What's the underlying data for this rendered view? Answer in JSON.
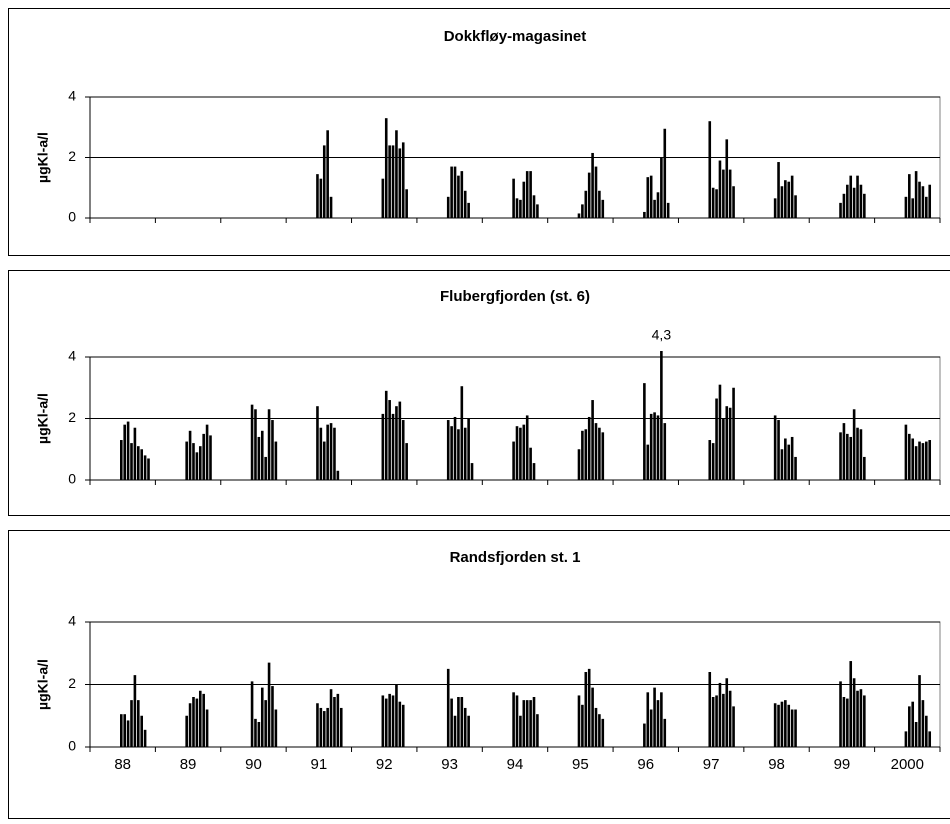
{
  "chart_data": [
    {
      "type": "bar",
      "title": "Dokkfløy-magasinet",
      "y_label": "µgKl-a/l",
      "color": "#000000",
      "grid": true,
      "ylim": [
        0,
        4
      ],
      "yticks": [
        0,
        2,
        4
      ],
      "categories": [
        null,
        null,
        null,
        null,
        null,
        null,
        null,
        null,
        null,
        null,
        null,
        null,
        null
      ],
      "values": [
        [],
        [],
        [],
        [
          1.45,
          1.3,
          2.4,
          2.9,
          0.7
        ],
        [
          1.3,
          3.3,
          2.4,
          2.4,
          2.9,
          2.3,
          2.5,
          0.95
        ],
        [
          0.7,
          1.7,
          1.7,
          1.4,
          1.55,
          0.9,
          0.5
        ],
        [
          1.3,
          0.65,
          0.6,
          1.2,
          1.55,
          1.55,
          0.75,
          0.45
        ],
        [
          0.15,
          0.45,
          0.9,
          1.5,
          2.15,
          1.7,
          0.9,
          0.6
        ],
        [
          0.2,
          1.35,
          1.4,
          0.6,
          0.85,
          2.0,
          2.95,
          0.5
        ],
        [
          3.2,
          1.0,
          0.95,
          1.9,
          1.6,
          2.6,
          1.6,
          1.05
        ],
        [
          0.65,
          1.85,
          1.05,
          1.25,
          1.2,
          1.4,
          0.75
        ],
        [
          0.5,
          0.8,
          1.1,
          1.4,
          1.0,
          1.4,
          1.1,
          0.8
        ],
        [
          0.7,
          1.45,
          0.65,
          1.55,
          1.2,
          1.05,
          0.7,
          1.1
        ]
      ]
    },
    {
      "type": "bar",
      "title": "Flubergfjorden (st. 6)",
      "y_label": "µgKl-a/l",
      "color": "#000000",
      "grid": true,
      "ylim": [
        0,
        4
      ],
      "yticks": [
        0,
        2,
        4
      ],
      "categories": [
        null,
        null,
        null,
        null,
        null,
        null,
        null,
        null,
        null,
        null,
        null,
        null,
        null
      ],
      "values": [
        [
          1.3,
          1.8,
          1.9,
          1.2,
          1.7,
          1.1,
          1.0,
          0.8,
          0.7
        ],
        [
          1.25,
          1.6,
          1.2,
          0.9,
          1.1,
          1.5,
          1.8,
          1.45
        ],
        [
          2.45,
          2.3,
          1.4,
          1.6,
          0.75,
          2.3,
          1.95,
          1.25
        ],
        [
          2.4,
          1.7,
          1.25,
          1.8,
          1.85,
          1.7,
          0.3
        ],
        [
          2.15,
          2.9,
          2.6,
          2.15,
          2.4,
          2.55,
          1.95,
          1.2
        ],
        [
          1.95,
          1.75,
          2.05,
          1.65,
          3.05,
          1.7,
          2.0,
          0.55
        ],
        [
          1.25,
          1.75,
          1.7,
          1.8,
          2.1,
          1.05,
          0.55
        ],
        [
          1.0,
          1.6,
          1.65,
          2.05,
          2.6,
          1.85,
          1.7,
          1.55
        ],
        [
          3.15,
          1.15,
          2.15,
          2.2,
          2.1,
          4.3,
          1.85
        ],
        [
          1.3,
          1.2,
          2.65,
          3.1,
          2.0,
          2.4,
          2.35,
          3.0
        ],
        [
          2.1,
          1.95,
          1.0,
          1.35,
          1.15,
          1.4,
          0.75
        ],
        [
          1.55,
          1.85,
          1.5,
          1.4,
          2.3,
          1.7,
          1.65,
          0.75
        ],
        [
          1.8,
          1.5,
          1.35,
          1.1,
          1.25,
          1.2,
          1.25,
          1.3
        ]
      ],
      "annotations": [
        {
          "text": "4,3",
          "value": 4.3
        }
      ]
    },
    {
      "type": "bar",
      "title": "Randsfjorden st. 1",
      "y_label": "µgKl-a/l",
      "color": "#000000",
      "grid": true,
      "ylim": [
        0,
        4
      ],
      "yticks": [
        0,
        2,
        4
      ],
      "categories": [
        "88",
        "89",
        "90",
        "91",
        "92",
        "93",
        "94",
        "95",
        "96",
        "97",
        "98",
        "99",
        "2000"
      ],
      "values": [
        [
          1.05,
          1.05,
          0.85,
          1.5,
          2.3,
          1.5,
          1.0,
          0.55
        ],
        [
          1.0,
          1.4,
          1.6,
          1.55,
          1.8,
          1.7,
          1.2
        ],
        [
          2.1,
          0.9,
          0.8,
          1.9,
          1.5,
          2.7,
          1.95,
          1.2
        ],
        [
          1.4,
          1.25,
          1.15,
          1.25,
          1.85,
          1.6,
          1.7,
          1.25
        ],
        [
          1.65,
          1.55,
          1.7,
          1.65,
          2.0,
          1.45,
          1.35
        ],
        [
          2.5,
          1.55,
          1.0,
          1.6,
          1.6,
          1.25,
          1.0
        ],
        [
          1.75,
          1.65,
          1.0,
          1.5,
          1.5,
          1.5,
          1.6,
          1.05
        ],
        [
          1.65,
          1.35,
          2.4,
          2.5,
          1.9,
          1.25,
          1.05,
          0.9
        ],
        [
          0.75,
          1.75,
          1.2,
          1.9,
          1.5,
          1.75,
          0.9
        ],
        [
          2.4,
          1.6,
          1.65,
          2.05,
          1.7,
          2.2,
          1.8,
          1.3
        ],
        [
          1.4,
          1.35,
          1.45,
          1.5,
          1.35,
          1.2,
          1.2
        ],
        [
          2.1,
          1.6,
          1.55,
          2.75,
          2.2,
          1.8,
          1.85,
          1.65
        ],
        [
          0.5,
          1.3,
          1.45,
          0.8,
          2.3,
          1.5,
          1.0,
          0.5
        ]
      ]
    }
  ]
}
